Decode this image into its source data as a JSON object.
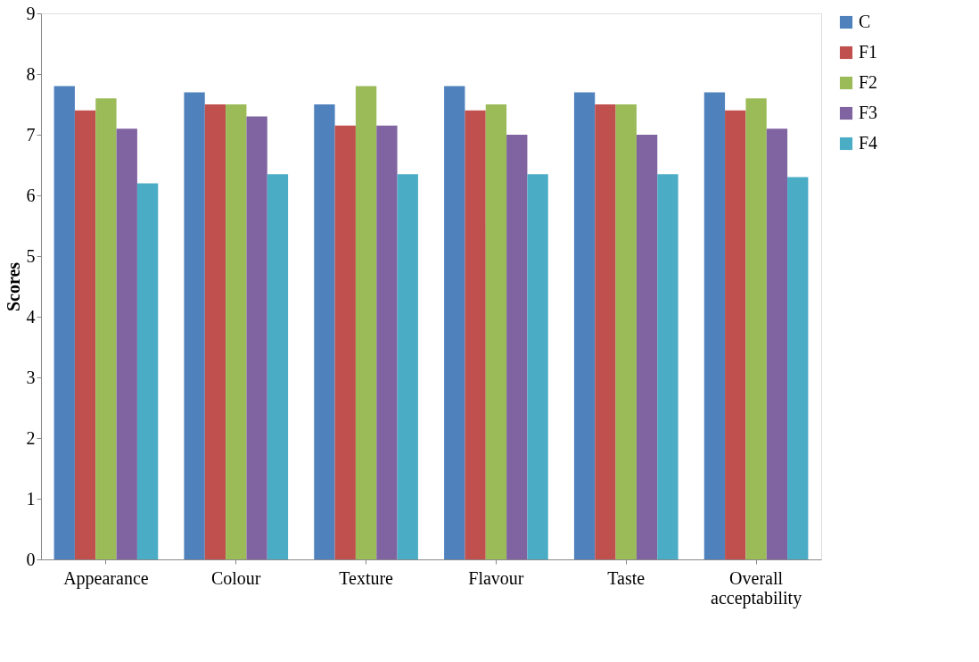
{
  "chart_data": {
    "type": "bar",
    "ylabel": "Scores",
    "categories": [
      "Appearance",
      "Colour",
      "Texture",
      "Flavour",
      "Taste",
      "Overall acceptability"
    ],
    "series": [
      {
        "name": "C",
        "color": "#4f81bd",
        "values": [
          7.8,
          7.7,
          7.5,
          7.8,
          7.7,
          7.7
        ]
      },
      {
        "name": "F1",
        "color": "#c0504d",
        "values": [
          7.4,
          7.5,
          7.15,
          7.4,
          7.5,
          7.4
        ]
      },
      {
        "name": "F2",
        "color": "#9bbb59",
        "values": [
          7.6,
          7.5,
          7.8,
          7.5,
          7.5,
          7.6
        ]
      },
      {
        "name": "F3",
        "color": "#8064a2",
        "values": [
          7.1,
          7.3,
          7.15,
          7.0,
          7.0,
          7.1
        ]
      },
      {
        "name": "F4",
        "color": "#4bacc6",
        "values": [
          6.2,
          6.35,
          6.35,
          6.35,
          6.35,
          6.3
        ]
      }
    ],
    "ylim": [
      0,
      9
    ],
    "yticks": [
      0,
      1,
      2,
      3,
      4,
      5,
      6,
      7,
      8,
      9
    ],
    "grid": false,
    "legend": "right"
  }
}
